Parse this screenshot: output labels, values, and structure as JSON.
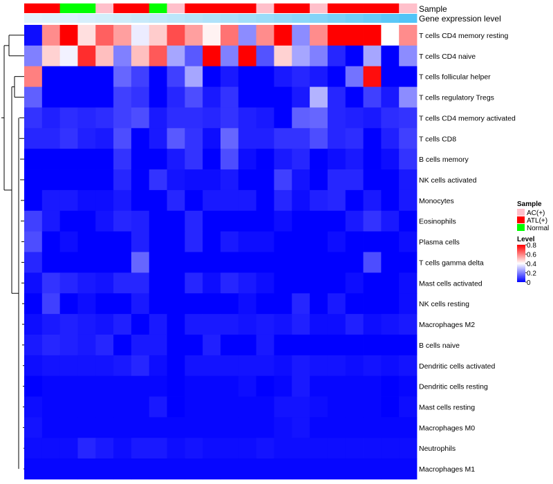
{
  "chart_data": {
    "type": "heatmap",
    "annotation_labels": [
      "Sample",
      "Gene expression level"
    ],
    "sample_groups": [
      "ATL(+)",
      "ATL(+)",
      "Normal",
      "Normal",
      "AC(+)",
      "ATL(+)",
      "ATL(+)",
      "Normal",
      "AC(+)",
      "ATL(+)",
      "ATL(+)",
      "ATL(+)",
      "ATL(+)",
      "AC(+)",
      "ATL(+)",
      "ATL(+)",
      "AC(+)",
      "ATL(+)",
      "ATL(+)",
      "ATL(+)",
      "ATL(+)",
      "AC(+)"
    ],
    "expression_levels": [
      0.02,
      0.05,
      0.07,
      0.1,
      0.13,
      0.16,
      0.2,
      0.24,
      0.28,
      0.32,
      0.36,
      0.4,
      0.45,
      0.5,
      0.55,
      0.6,
      0.65,
      0.72,
      0.78,
      0.84,
      0.92,
      0.98
    ],
    "rows": [
      "T cells CD4 memory resting",
      "T cells CD4 naive",
      "T cells follicular helper",
      "T cells regulatory  Tregs",
      "T cells CD4 memory activated",
      "T cells CD8",
      "B cells memory",
      "NK cells activated",
      "Monocytes",
      "Eosinophils",
      "Plasma cells",
      "T cells gamma delta",
      "Mast cells activated",
      "NK cells resting",
      "Macrophages M2",
      "B cells naive",
      "Dendritic cells activated",
      "Dendritic cells resting",
      "Mast cells resting",
      "Macrophages M0",
      "Neutrophils",
      "Macrophages M1"
    ],
    "values": [
      [
        0.02,
        0.58,
        0.8,
        0.45,
        0.65,
        0.55,
        0.37,
        0.48,
        0.68,
        0.55,
        0.42,
        0.62,
        0.22,
        0.58,
        0.8,
        0.22,
        0.58,
        0.8,
        0.8,
        0.8,
        0.4,
        0.58
      ],
      [
        0.2,
        0.47,
        0.38,
        0.73,
        0.5,
        0.2,
        0.5,
        0.66,
        0.26,
        0.14,
        0.8,
        0.2,
        0.8,
        0.13,
        0.47,
        0.26,
        0.2,
        0.06,
        0.0,
        0.26,
        0.0,
        0.22
      ],
      [
        0.6,
        0.0,
        0.0,
        0.0,
        0.0,
        0.16,
        0.1,
        0.0,
        0.1,
        0.26,
        0.0,
        0.04,
        0.0,
        0.0,
        0.04,
        0.06,
        0.04,
        0.0,
        0.18,
        0.78,
        0.0,
        0.0
      ],
      [
        0.15,
        0.0,
        0.0,
        0.0,
        0.0,
        0.1,
        0.08,
        0.0,
        0.06,
        0.12,
        0.04,
        0.08,
        0.0,
        0.0,
        0.0,
        0.04,
        0.28,
        0.06,
        0.0,
        0.1,
        0.04,
        0.22
      ],
      [
        0.08,
        0.05,
        0.07,
        0.06,
        0.07,
        0.1,
        0.12,
        0.04,
        0.07,
        0.07,
        0.06,
        0.08,
        0.05,
        0.04,
        0.0,
        0.15,
        0.16,
        0.06,
        0.05,
        0.04,
        0.07,
        0.08
      ],
      [
        0.06,
        0.06,
        0.08,
        0.05,
        0.04,
        0.12,
        0.0,
        0.04,
        0.14,
        0.08,
        0.02,
        0.16,
        0.05,
        0.05,
        0.08,
        0.08,
        0.12,
        0.06,
        0.07,
        0.0,
        0.05,
        0.1
      ],
      [
        0.0,
        0.0,
        0.0,
        0.0,
        0.0,
        0.08,
        0.0,
        0.0,
        0.04,
        0.08,
        0.0,
        0.12,
        0.02,
        0.0,
        0.04,
        0.06,
        0.0,
        0.02,
        0.04,
        0.0,
        0.02,
        0.08
      ],
      [
        0.0,
        0.0,
        0.0,
        0.0,
        0.0,
        0.06,
        0.0,
        0.08,
        0.03,
        0.02,
        0.02,
        0.04,
        0.0,
        0.0,
        0.1,
        0.03,
        0.0,
        0.06,
        0.06,
        0.0,
        0.0,
        0.04
      ],
      [
        0.0,
        0.04,
        0.04,
        0.02,
        0.02,
        0.04,
        0.0,
        0.0,
        0.06,
        0.0,
        0.04,
        0.04,
        0.04,
        0.0,
        0.06,
        0.02,
        0.05,
        0.06,
        0.0,
        0.04,
        0.0,
        0.04
      ],
      [
        0.1,
        0.04,
        0.0,
        0.0,
        0.03,
        0.06,
        0.05,
        0.0,
        0.0,
        0.06,
        0.0,
        0.0,
        0.0,
        0.0,
        0.02,
        0.0,
        0.0,
        0.0,
        0.04,
        0.08,
        0.04,
        0.0
      ],
      [
        0.12,
        0.0,
        0.02,
        0.0,
        0.0,
        0.0,
        0.05,
        0.0,
        0.0,
        0.06,
        0.0,
        0.04,
        0.02,
        0.02,
        0.0,
        0.0,
        0.0,
        0.02,
        0.0,
        0.0,
        0.0,
        0.02
      ],
      [
        0.06,
        0.0,
        0.0,
        0.0,
        0.0,
        0.0,
        0.16,
        0.0,
        0.0,
        0.0,
        0.0,
        0.0,
        0.0,
        0.0,
        0.0,
        0.0,
        0.0,
        0.0,
        0.0,
        0.12,
        0.0,
        0.0
      ],
      [
        0.02,
        0.08,
        0.06,
        0.04,
        0.03,
        0.06,
        0.06,
        0.0,
        0.0,
        0.06,
        0.02,
        0.06,
        0.04,
        0.02,
        0.0,
        0.0,
        0.0,
        0.0,
        0.02,
        0.0,
        0.0,
        0.02
      ],
      [
        0.0,
        0.1,
        0.0,
        0.02,
        0.0,
        0.0,
        0.04,
        0.0,
        0.0,
        0.0,
        0.0,
        0.0,
        0.02,
        0.0,
        0.0,
        0.06,
        0.0,
        0.04,
        0.0,
        0.0,
        0.0,
        0.02
      ],
      [
        0.02,
        0.04,
        0.05,
        0.04,
        0.03,
        0.05,
        0.0,
        0.04,
        0.0,
        0.04,
        0.04,
        0.04,
        0.03,
        0.04,
        0.03,
        0.05,
        0.02,
        0.02,
        0.05,
        0.02,
        0.03,
        0.04
      ],
      [
        0.04,
        0.06,
        0.05,
        0.04,
        0.06,
        0.0,
        0.04,
        0.04,
        0.0,
        0.0,
        0.05,
        0.0,
        0.0,
        0.04,
        0.0,
        0.0,
        0.0,
        0.0,
        0.0,
        0.0,
        0.0,
        0.0
      ],
      [
        0.02,
        0.03,
        0.03,
        0.03,
        0.03,
        0.04,
        0.06,
        0.02,
        0.0,
        0.03,
        0.03,
        0.03,
        0.03,
        0.03,
        0.02,
        0.04,
        0.03,
        0.03,
        0.02,
        0.03,
        0.02,
        0.03
      ],
      [
        0.0,
        0.01,
        0.01,
        0.01,
        0.01,
        0.01,
        0.01,
        0.01,
        0.0,
        0.01,
        0.01,
        0.01,
        0.02,
        0.0,
        0.01,
        0.04,
        0.01,
        0.01,
        0.01,
        0.01,
        0.0,
        0.01
      ],
      [
        0.02,
        0.01,
        0.01,
        0.01,
        0.01,
        0.01,
        0.01,
        0.04,
        0.0,
        0.01,
        0.01,
        0.01,
        0.01,
        0.01,
        0.03,
        0.03,
        0.02,
        0.01,
        0.01,
        0.01,
        0.0,
        0.02
      ],
      [
        0.03,
        0.01,
        0.01,
        0.01,
        0.01,
        0.01,
        0.01,
        0.01,
        0.01,
        0.01,
        0.01,
        0.01,
        0.01,
        0.01,
        0.02,
        0.03,
        0.01,
        0.01,
        0.01,
        0.01,
        0.01,
        0.01
      ],
      [
        0.02,
        0.02,
        0.02,
        0.06,
        0.04,
        0.02,
        0.04,
        0.04,
        0.02,
        0.03,
        0.02,
        0.02,
        0.02,
        0.03,
        0.02,
        0.02,
        0.02,
        0.02,
        0.02,
        0.02,
        0.02,
        0.02
      ],
      [
        0.01,
        0.01,
        0.01,
        0.01,
        0.01,
        0.01,
        0.01,
        0.01,
        0.01,
        0.01,
        0.01,
        0.01,
        0.01,
        0.01,
        0.01,
        0.01,
        0.01,
        0.01,
        0.01,
        0.01,
        0.01,
        0.01
      ]
    ],
    "color_scale": {
      "min": 0,
      "max": 0.8,
      "colors": [
        "#0000ff",
        "#ffffff",
        "#ff0000"
      ]
    },
    "legend_sample": {
      "title": "Sample",
      "items": [
        {
          "label": "AC(+)",
          "color": "#ffc0cb"
        },
        {
          "label": "ATL(+)",
          "color": "#ff0000"
        },
        {
          "label": "Normal",
          "color": "#00ff00"
        }
      ]
    },
    "legend_level": {
      "title": "Level",
      "ticks": [
        {
          "label": "0.8",
          "value": 0.8
        },
        {
          "label": "0.6",
          "value": 0.6
        },
        {
          "label": "0.4",
          "value": 0.4
        },
        {
          "label": "0.2",
          "value": 0.2
        },
        {
          "label": "0",
          "value": 0
        }
      ]
    },
    "row_dendrogram": true
  }
}
